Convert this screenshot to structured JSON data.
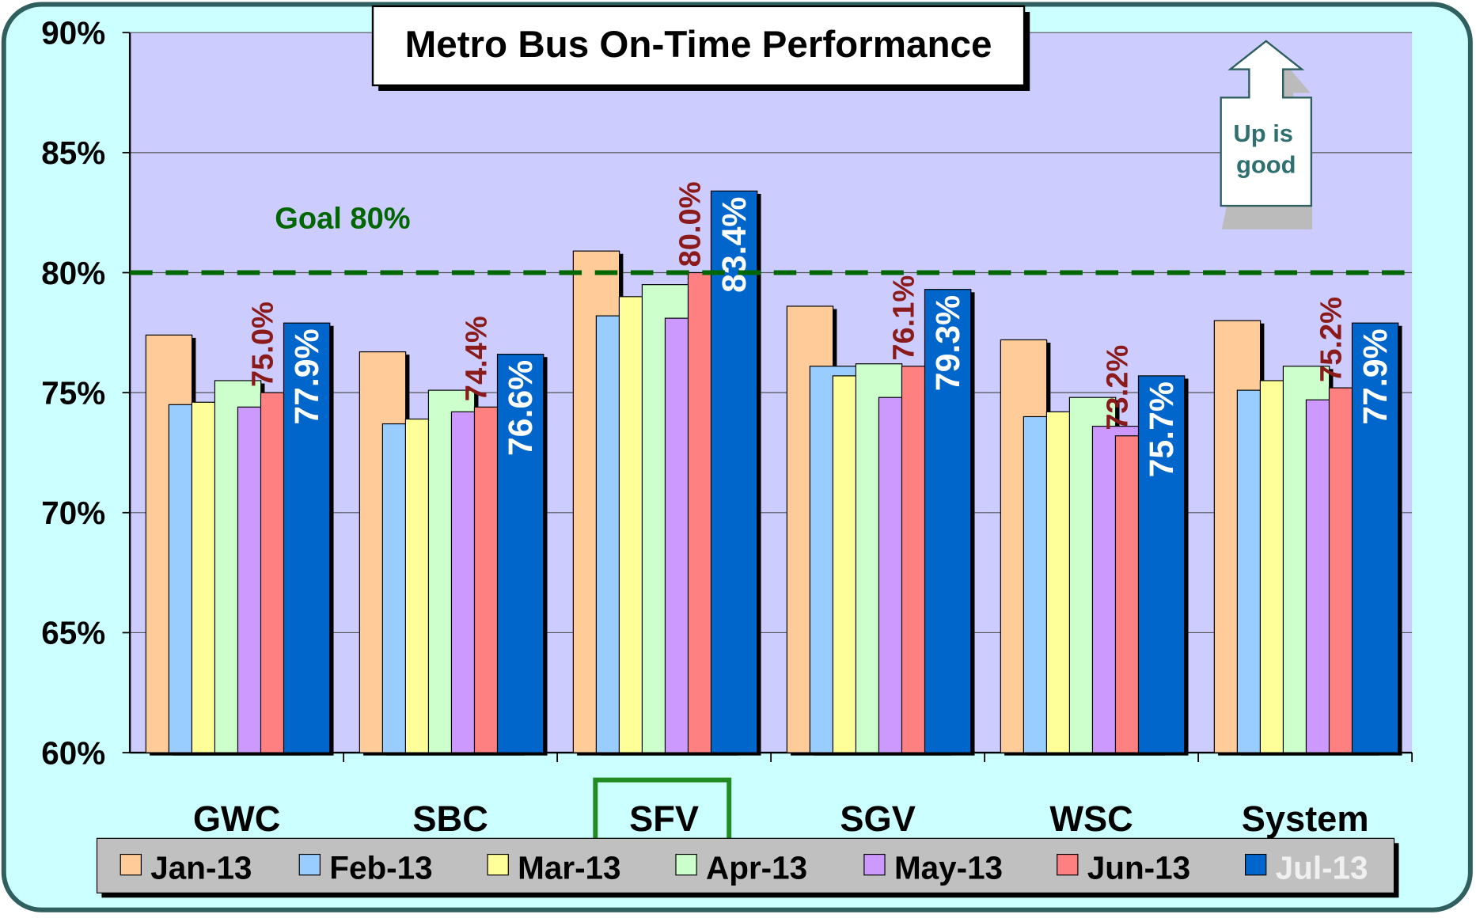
{
  "chart_data": {
    "type": "bar",
    "title": "Metro Bus On-Time Performance",
    "categories": [
      "GWC",
      "SBC",
      "SFV",
      "SGV",
      "WSC",
      "System"
    ],
    "highlight_index": 2,
    "series": [
      {
        "name": "Jan-13",
        "color": "#ffcc99",
        "values": [
          77.4,
          76.7,
          80.9,
          78.6,
          77.2,
          78.0
        ]
      },
      {
        "name": "Feb-13",
        "color": "#99ccff",
        "values": [
          74.5,
          73.7,
          78.2,
          76.1,
          74.0,
          75.1
        ]
      },
      {
        "name": "Mar-13",
        "color": "#ffff99",
        "values": [
          74.6,
          73.9,
          79.0,
          75.7,
          74.2,
          75.5
        ]
      },
      {
        "name": "Apr-13",
        "color": "#ccffcc",
        "values": [
          75.5,
          75.1,
          79.5,
          76.2,
          74.8,
          76.1
        ]
      },
      {
        "name": "May-13",
        "color": "#cc99ff",
        "values": [
          74.4,
          74.2,
          78.1,
          74.8,
          73.6,
          74.7
        ]
      },
      {
        "name": "Jun-13",
        "color": "#ff8080",
        "values": [
          75.0,
          74.4,
          80.0,
          76.1,
          73.2,
          75.2
        ],
        "value_labels": [
          "75.0%",
          "74.4%",
          "80.0%",
          "76.1%",
          "73.2%",
          "75.2%"
        ]
      },
      {
        "name": "Jul-13",
        "color": "#0066cc",
        "values": [
          77.9,
          76.6,
          83.4,
          79.3,
          75.7,
          77.9
        ],
        "value_labels": [
          "77.9%",
          "76.6%",
          "83.4%",
          "79.3%",
          "75.7%",
          "77.9%"
        ]
      }
    ],
    "ylim": [
      60,
      90
    ],
    "yticks": [
      {
        "value": 60,
        "label": "60%"
      },
      {
        "value": 65,
        "label": "65%"
      },
      {
        "value": 70,
        "label": "70%"
      },
      {
        "value": 75,
        "label": "75%"
      },
      {
        "value": 80,
        "label": "80%"
      },
      {
        "value": 85,
        "label": "85%"
      },
      {
        "value": 90,
        "label": "90%"
      }
    ],
    "grid": true,
    "goal": {
      "value": 80,
      "label": "Goal 80%",
      "color": "#006600"
    },
    "note": [
      "Up is",
      "good"
    ]
  }
}
